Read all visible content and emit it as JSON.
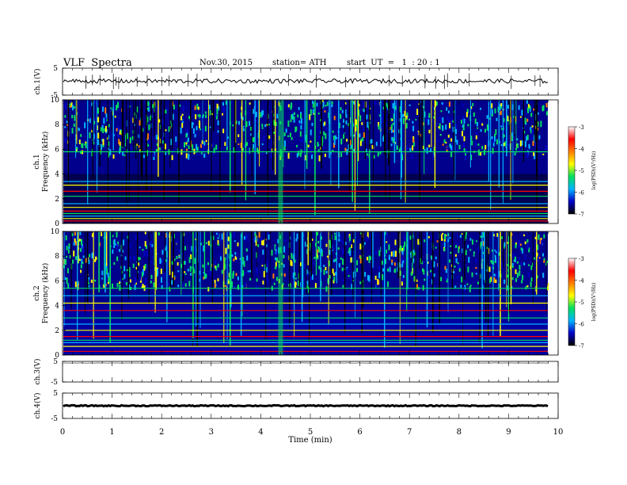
{
  "header": {
    "title": "VLF  Spectra",
    "date": "Nov.30, 2015",
    "station": "station= ATH",
    "start": "start  UT  =   1  : 20 : 1"
  },
  "chart_data": [
    {
      "type": "line",
      "name": "ch1-waveform",
      "ylabel": "ch.1(V)",
      "ylim": [
        -5,
        5
      ],
      "yticks": [
        "5",
        "-5"
      ],
      "xlim": [
        0,
        10
      ],
      "level": 0.2,
      "series_color": "#000000"
    },
    {
      "type": "heatmap",
      "name": "ch1-spectrogram",
      "ylabel_top": "ch.1",
      "ylabel": "Frequency  (kHz)",
      "ylim": [
        0,
        10
      ],
      "yticks": [
        "0",
        "2",
        "4",
        "6",
        "8",
        "10"
      ],
      "xlim": [
        0,
        9.8
      ],
      "colorbar": {
        "label": "log(PSD)(V²/Hz)",
        "range": [
          -7,
          -3
        ],
        "ticks": [
          "-3",
          "-4",
          "-5",
          "-6",
          "-7"
        ],
        "colors": [
          "#000000",
          "#0000c8",
          "#00b4ff",
          "#00e060",
          "#ffff00",
          "#ff8000",
          "#ff0000",
          "#ffffff"
        ]
      },
      "lines_khz": [
        0.2,
        0.4,
        0.6,
        0.8,
        1.0,
        1.3,
        1.6,
        2.2,
        2.6,
        3.1,
        3.4,
        5.8
      ],
      "burst_min": 4.4
    },
    {
      "type": "heatmap",
      "name": "ch2-spectrogram",
      "ylabel_top": "ch.2",
      "ylabel": "Frequency  (kHz)",
      "ylim": [
        0,
        10
      ],
      "yticks": [
        "0",
        "2",
        "4",
        "6",
        "8",
        "10"
      ],
      "xlim": [
        0,
        9.8
      ],
      "colorbar": {
        "label": "log(PSD)(V²/Hz)",
        "range": [
          -7,
          -3
        ],
        "ticks": [
          "-3",
          "-4",
          "-5",
          "-6",
          "-7"
        ],
        "colors": [
          "#000000",
          "#0000c8",
          "#00b4ff",
          "#00e060",
          "#ffff00",
          "#ff8000",
          "#ff0000",
          "#ffffff"
        ]
      },
      "lines_khz": [
        0.3,
        0.7,
        1.0,
        1.2,
        1.5,
        2.0,
        2.5,
        3.0,
        3.6,
        4.2,
        4.8,
        5.4
      ],
      "burst_min": 4.4
    },
    {
      "type": "line",
      "name": "ch3-waveform",
      "ylabel": "ch.3(V)",
      "ylim": [
        -5,
        5
      ],
      "yticks": [
        "5",
        "-5"
      ],
      "xlim": [
        0,
        10
      ],
      "level": 4.2,
      "series_color": "#808080"
    },
    {
      "type": "line",
      "name": "ch4-waveform",
      "ylabel": "ch.4(V)",
      "ylim": [
        -5,
        5
      ],
      "yticks": [
        "5",
        "-5"
      ],
      "xlim": [
        0,
        10
      ],
      "level": 0.0,
      "series_color": "#000000"
    }
  ],
  "xaxis": {
    "label": "Time  (min)",
    "ticks": [
      "0",
      "1",
      "2",
      "3",
      "4",
      "5",
      "6",
      "7",
      "8",
      "9",
      "10"
    ]
  }
}
